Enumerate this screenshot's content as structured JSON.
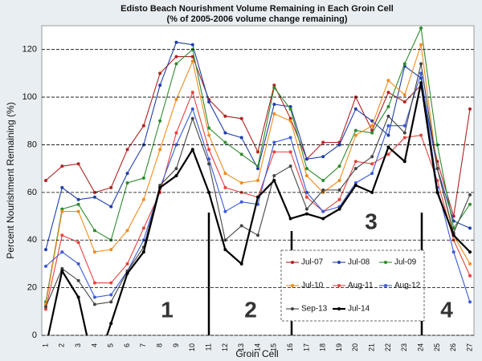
{
  "chart_data": {
    "type": "line",
    "title": "Edisto Beach Nourishment Volume Remaining in Each Groin Cell",
    "subtitle": "(% of 2005-2006 volume change remaining)",
    "y_label": "Percent Nourishment Remaining (%)",
    "x_label": "Groin Cell",
    "categories": [
      "1",
      "2",
      "3",
      "4",
      "5",
      "6",
      "7",
      "8",
      "9",
      "10",
      "11",
      "12",
      "13",
      "14",
      "15",
      "16",
      "17",
      "18",
      "19",
      "20",
      "21",
      "22",
      "23",
      "24",
      "25",
      "26",
      "27"
    ],
    "ylim": [
      0,
      130
    ],
    "yticks": [
      0,
      20,
      40,
      60,
      80,
      100,
      120
    ],
    "grid": true,
    "annotations": [
      "1",
      "2",
      "3",
      "4"
    ],
    "series": [
      {
        "name": "Jul-07",
        "color": "#b22222",
        "values": [
          65,
          71,
          72,
          60,
          62,
          78,
          88,
          110,
          117,
          117,
          99,
          92,
          91,
          77,
          105,
          91,
          74,
          81,
          81,
          100,
          86,
          102,
          98,
          105,
          73,
          50,
          95
        ]
      },
      {
        "name": "Jul-08",
        "color": "#1f3fa8",
        "values": [
          36,
          62,
          57,
          58,
          54,
          68,
          80,
          105,
          123,
          122,
          98,
          85,
          83,
          70,
          97,
          96,
          74,
          75,
          80,
          95,
          90,
          84,
          113,
          108,
          70,
          48,
          45
        ]
      },
      {
        "name": "Jul-09",
        "color": "#2e8b2e",
        "values": [
          14,
          53,
          55,
          44,
          40,
          64,
          66,
          90,
          114,
          120,
          87,
          81,
          76,
          71,
          104,
          95,
          70,
          65,
          71,
          86,
          85,
          96,
          114,
          129,
          80,
          45,
          55
        ]
      },
      {
        "name": "Jul-10",
        "color": "#f08c1e",
        "values": [
          13,
          52,
          52,
          35,
          36,
          44,
          57,
          78,
          99,
          115,
          84,
          68,
          64,
          65,
          93,
          90,
          67,
          60,
          65,
          84,
          88,
          107,
          101,
          122,
          70,
          42,
          30
        ]
      },
      {
        "name": "Aug-11",
        "color": "#e8413c",
        "values": [
          11,
          42,
          39,
          22,
          22,
          30,
          45,
          60,
          85,
          102,
          78,
          62,
          60,
          58,
          77,
          77,
          58,
          52,
          57,
          73,
          72,
          76,
          83,
          84,
          65,
          40,
          25
        ]
      },
      {
        "name": "Aug-12",
        "color": "#3a5bd8",
        "values": [
          29,
          35,
          30,
          16,
          17,
          27,
          40,
          62,
          80,
          95,
          74,
          52,
          56,
          55,
          81,
          83,
          60,
          52,
          54,
          64,
          68,
          88,
          88,
          110,
          62,
          35,
          14
        ]
      },
      {
        "name": "Sep-13",
        "color": "#444444",
        "values": [
          12,
          28,
          23,
          13,
          14,
          27,
          37,
          63,
          70,
          91,
          72,
          40,
          46,
          42,
          67,
          71,
          53,
          61,
          61,
          70,
          75,
          92,
          85,
          114,
          70,
          43,
          59
        ]
      },
      {
        "name": "Jul-14",
        "color": "#000000",
        "values": [
          -5,
          27,
          16,
          -15,
          5,
          26,
          35,
          62,
          67,
          78,
          60,
          36,
          30,
          58,
          65,
          49,
          51,
          49,
          53,
          63,
          60,
          79,
          73,
          106,
          60,
          42,
          35
        ]
      }
    ]
  }
}
